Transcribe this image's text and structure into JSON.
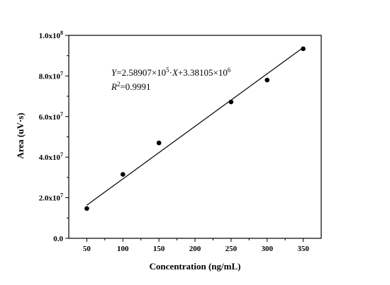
{
  "chart_data": {
    "type": "scatter",
    "xlabel": "Concentration (ng/mL)",
    "ylabel": "Area (uV·s)",
    "xlim": [
      25,
      375
    ],
    "ylim": [
      0,
      100000000
    ],
    "x_ticks": [
      50,
      100,
      150,
      200,
      250,
      300,
      350
    ],
    "x_tick_labels": [
      "50",
      "100",
      "150",
      "200",
      "250",
      "300",
      "350"
    ],
    "y_ticks": [
      0,
      20000000,
      40000000,
      60000000,
      80000000,
      100000000
    ],
    "y_tick_labels": [
      {
        "mantissa": "0.0",
        "exp": ""
      },
      {
        "mantissa": "2.0x10",
        "exp": "7"
      },
      {
        "mantissa": "4.0x10",
        "exp": "7"
      },
      {
        "mantissa": "6.0x10",
        "exp": "7"
      },
      {
        "mantissa": "8.0x10",
        "exp": "7"
      },
      {
        "mantissa": "1.0x10",
        "exp": "8"
      }
    ],
    "series": [
      {
        "x": [
          50,
          100,
          150,
          250,
          300,
          350
        ],
        "y": [
          14700000,
          31500000,
          47000000,
          67200000,
          78000000,
          93400000
        ]
      }
    ],
    "fit": {
      "slope": 258907,
      "intercept": 3381050,
      "x_range": [
        50,
        350
      ]
    },
    "equation": {
      "y_var": "Y",
      "eq1": "=2.58907×10",
      "exp1": "5",
      "mid": "·",
      "x_var": "X",
      "eq2": "+3.38105×10",
      "exp2": "6",
      "r_var": "R",
      "r_exp": "2",
      "r_val": "=0.9991"
    },
    "grid": false,
    "legend": "none"
  }
}
